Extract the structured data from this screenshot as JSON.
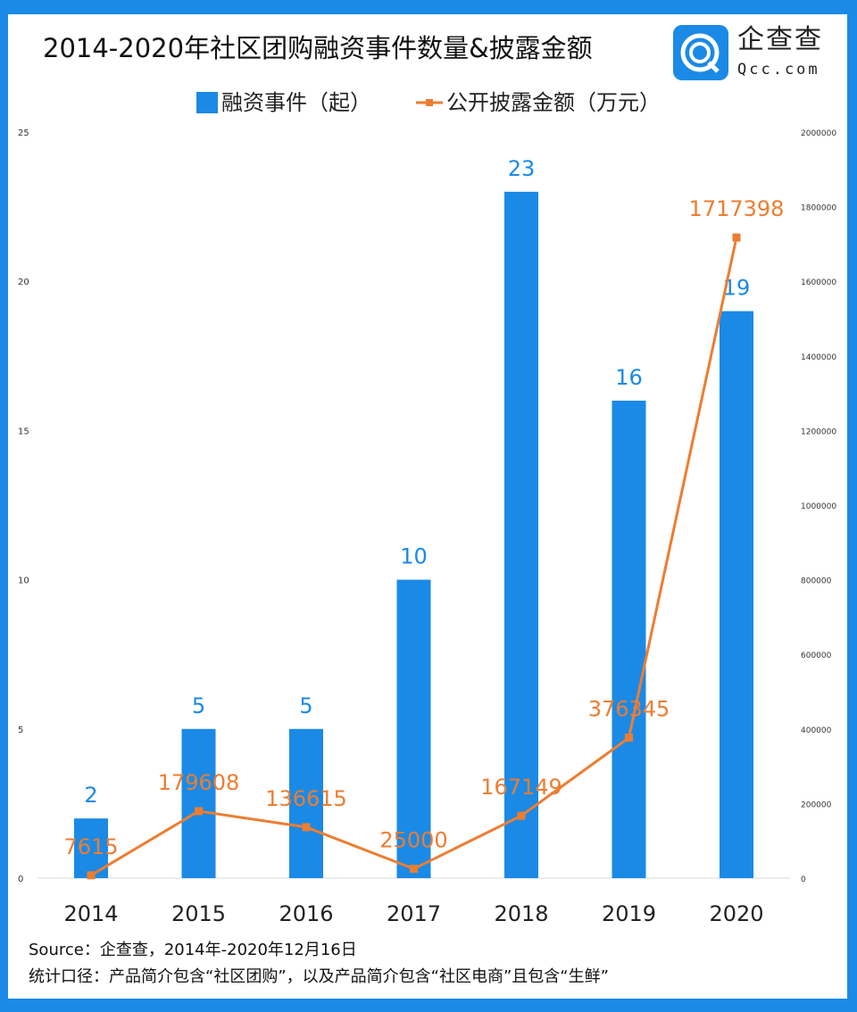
{
  "title": "2014-2020年社区团购融资事件数量&披露金额",
  "logo": {
    "cn": "企查查",
    "en": "Qcc.com"
  },
  "colors": {
    "bar": "#1a8ae6",
    "line": "#ed7d31",
    "border": "#1a8ae6"
  },
  "footer": {
    "source": "Source：企查查，2014年-2020年12月16日",
    "note": "统计口径：产品简介包含“社区团购”，以及产品简介包含“社区电商”且包含“生鲜”"
  },
  "chart_data": {
    "type": "bar+line",
    "categories": [
      "2014",
      "2015",
      "2016",
      "2017",
      "2018",
      "2019",
      "2020"
    ],
    "series": [
      {
        "name": "融资事件（起）",
        "type": "bar",
        "axis": "left",
        "values": [
          2,
          5,
          5,
          10,
          23,
          16,
          19
        ]
      },
      {
        "name": "公开披露金额（万元）",
        "type": "line",
        "axis": "right",
        "values": [
          7615,
          179608,
          136615,
          25000,
          167149,
          376345,
          1717398
        ]
      }
    ],
    "left_axis": {
      "range": [
        0,
        25
      ],
      "ticks": [
        "0",
        "5",
        "10",
        "15",
        "20",
        "25"
      ]
    },
    "right_axis": {
      "range": [
        0,
        2000000
      ],
      "ticks": [
        "0",
        "200000",
        "400000",
        "600000",
        "800000",
        "1000000",
        "1200000",
        "1400000",
        "1600000",
        "1800000",
        "2000000"
      ]
    },
    "legend": "top-center",
    "grid": false
  }
}
